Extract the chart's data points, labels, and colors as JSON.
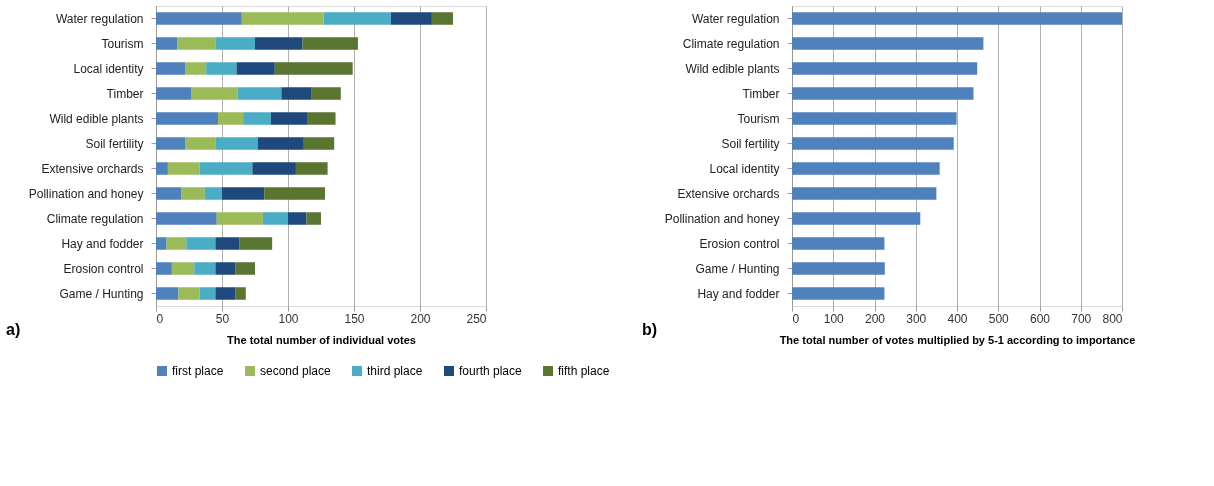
{
  "chart_data": [
    {
      "type": "bar",
      "orientation": "horizontal",
      "stacked": true,
      "xlabel": "The total number of individual votes",
      "annotations": [
        "a)"
      ],
      "categories": [
        "Water regulation",
        "Tourism",
        "Local identity",
        "Timber",
        "Wild edible plants",
        "Soil fertility",
        "Extensive orchards",
        "Pollination and honey",
        "Climate regulation",
        "Hay and fodder",
        "Erosion control",
        "Game / Hunting"
      ],
      "series": [
        {
          "name": "first place",
          "color": "#4f81bd",
          "values": [
            65,
            16,
            22,
            27,
            47,
            22,
            9,
            19,
            46,
            8,
            12,
            17
          ]
        },
        {
          "name": "second place",
          "color": "#9bbb59",
          "values": [
            62,
            29,
            16,
            35,
            19,
            23,
            24,
            18,
            35,
            15,
            17,
            16
          ]
        },
        {
          "name": "third place",
          "color": "#4bacc6",
          "values": [
            51,
            30,
            23,
            33,
            21,
            32,
            40,
            13,
            19,
            22,
            16,
            12
          ]
        },
        {
          "name": "fourth place",
          "color": "#1f497d",
          "values": [
            31,
            36,
            29,
            23,
            28,
            35,
            33,
            32,
            14,
            18,
            15,
            15
          ]
        },
        {
          "name": "fifth place",
          "color": "#5a7530",
          "values": [
            16,
            42,
            59,
            22,
            21,
            23,
            24,
            46,
            11,
            25,
            15,
            8
          ]
        }
      ],
      "xlim": [
        0,
        250
      ],
      "xticks": [
        0,
        50,
        100,
        150,
        200,
        250
      ],
      "grid": "x",
      "legend": "bottom"
    },
    {
      "type": "bar",
      "orientation": "horizontal",
      "xlabel": "The total number of votes multiplied by 5-1 according to importance",
      "annotations": [
        "b)"
      ],
      "categories": [
        "Water regulation",
        "Climate regulation",
        "Wild edible plants",
        "Timber",
        "Tourism",
        "Soil fertility",
        "Local identity",
        "Extensive orchards",
        "Pollination and honey",
        "Erosion control",
        "Game / Hunting",
        "Hay and fodder"
      ],
      "series": [
        {
          "color": "#4f81bd",
          "values": [
            800,
            464,
            449,
            440,
            399,
            392,
            358,
            350,
            311,
            224,
            225,
            224
          ]
        }
      ],
      "xlim": [
        0,
        800
      ],
      "xticks": [
        0,
        100,
        200,
        300,
        400,
        500,
        600,
        700,
        800
      ],
      "grid": "x"
    }
  ]
}
